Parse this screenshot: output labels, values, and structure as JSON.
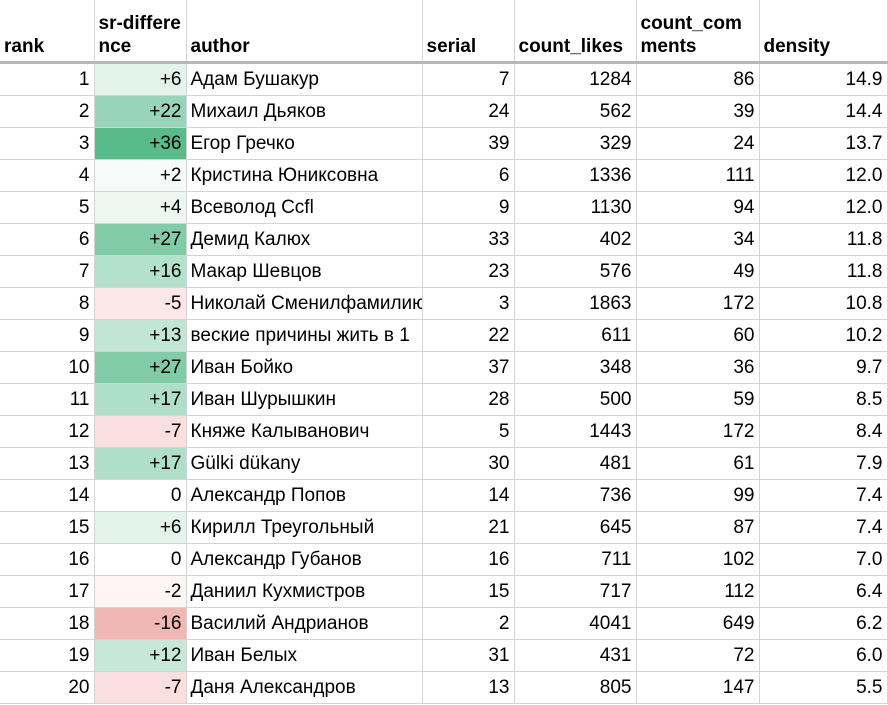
{
  "columns": [
    {
      "key": "rank",
      "label": "rank"
    },
    {
      "key": "srd",
      "label": "sr-difference"
    },
    {
      "key": "author",
      "label": "author"
    },
    {
      "key": "serial",
      "label": "serial"
    },
    {
      "key": "likes",
      "label": "count_likes"
    },
    {
      "key": "comments",
      "label": "count_comments"
    },
    {
      "key": "density",
      "label": "density"
    }
  ],
  "rows": [
    {
      "rank": "1",
      "srd": "+6",
      "author": "Адам Бушакур",
      "serial": "7",
      "likes": "1284",
      "comments": "86",
      "density": "14.9"
    },
    {
      "rank": "2",
      "srd": "+22",
      "author": "Михаил Дьяков",
      "serial": "24",
      "likes": "562",
      "comments": "39",
      "density": "14.4"
    },
    {
      "rank": "3",
      "srd": "+36",
      "author": "Егор Гречко",
      "serial": "39",
      "likes": "329",
      "comments": "24",
      "density": "13.7"
    },
    {
      "rank": "4",
      "srd": "+2",
      "author": "Кристина Юниксовна",
      "serial": "6",
      "likes": "1336",
      "comments": "111",
      "density": "12.0"
    },
    {
      "rank": "5",
      "srd": "+4",
      "author": "Всеволод Ccfl",
      "serial": "9",
      "likes": "1130",
      "comments": "94",
      "density": "12.0"
    },
    {
      "rank": "6",
      "srd": "+27",
      "author": "Демид Калюх",
      "serial": "33",
      "likes": "402",
      "comments": "34",
      "density": "11.8"
    },
    {
      "rank": "7",
      "srd": "+16",
      "author": "Макар Шевцов",
      "serial": "23",
      "likes": "576",
      "comments": "49",
      "density": "11.8"
    },
    {
      "rank": "8",
      "srd": "-5",
      "author": "Николай Сменилфамилию",
      "serial": "3",
      "likes": "1863",
      "comments": "172",
      "density": "10.8"
    },
    {
      "rank": "9",
      "srd": "+13",
      "author": "веские причины жить в 1",
      "serial": "22",
      "likes": "611",
      "comments": "60",
      "density": "10.2"
    },
    {
      "rank": "10",
      "srd": "+27",
      "author": "Иван Бойко",
      "serial": "37",
      "likes": "348",
      "comments": "36",
      "density": "9.7"
    },
    {
      "rank": "11",
      "srd": "+17",
      "author": "Иван Шурышкин",
      "serial": "28",
      "likes": "500",
      "comments": "59",
      "density": "8.5"
    },
    {
      "rank": "12",
      "srd": "-7",
      "author": "Княже Калыванович",
      "serial": "5",
      "likes": "1443",
      "comments": "172",
      "density": "8.4"
    },
    {
      "rank": "13",
      "srd": "+17",
      "author": "Gülki dükany",
      "serial": "30",
      "likes": "481",
      "comments": "61",
      "density": "7.9"
    },
    {
      "rank": "14",
      "srd": "0",
      "author": "Александр Попов",
      "serial": "14",
      "likes": "736",
      "comments": "99",
      "density": "7.4"
    },
    {
      "rank": "15",
      "srd": "+6",
      "author": "Кирилл Треугольный",
      "serial": "21",
      "likes": "645",
      "comments": "87",
      "density": "7.4"
    },
    {
      "rank": "16",
      "srd": "0",
      "author": "Александр Губанов",
      "serial": "16",
      "likes": "711",
      "comments": "102",
      "density": "7.0"
    },
    {
      "rank": "17",
      "srd": "-2",
      "author": "Даниил Кухмистров",
      "serial": "15",
      "likes": "717",
      "comments": "112",
      "density": "6.4"
    },
    {
      "rank": "18",
      "srd": "-16",
      "author": "Василий Андрианов",
      "serial": "2",
      "likes": "4041",
      "comments": "649",
      "density": "6.2"
    },
    {
      "rank": "19",
      "srd": "+12",
      "author": "Иван Белых",
      "serial": "31",
      "likes": "431",
      "comments": "72",
      "density": "6.0"
    },
    {
      "rank": "20",
      "srd": "-7",
      "author": "Даня Александров",
      "serial": "13",
      "likes": "805",
      "comments": "147",
      "density": "5.5"
    }
  ],
  "color_scale": {
    "positive": "#57bb8a",
    "negative": "#e67c73",
    "neutral": "#ffffff",
    "max_positive": 36,
    "max_negative": 16
  }
}
